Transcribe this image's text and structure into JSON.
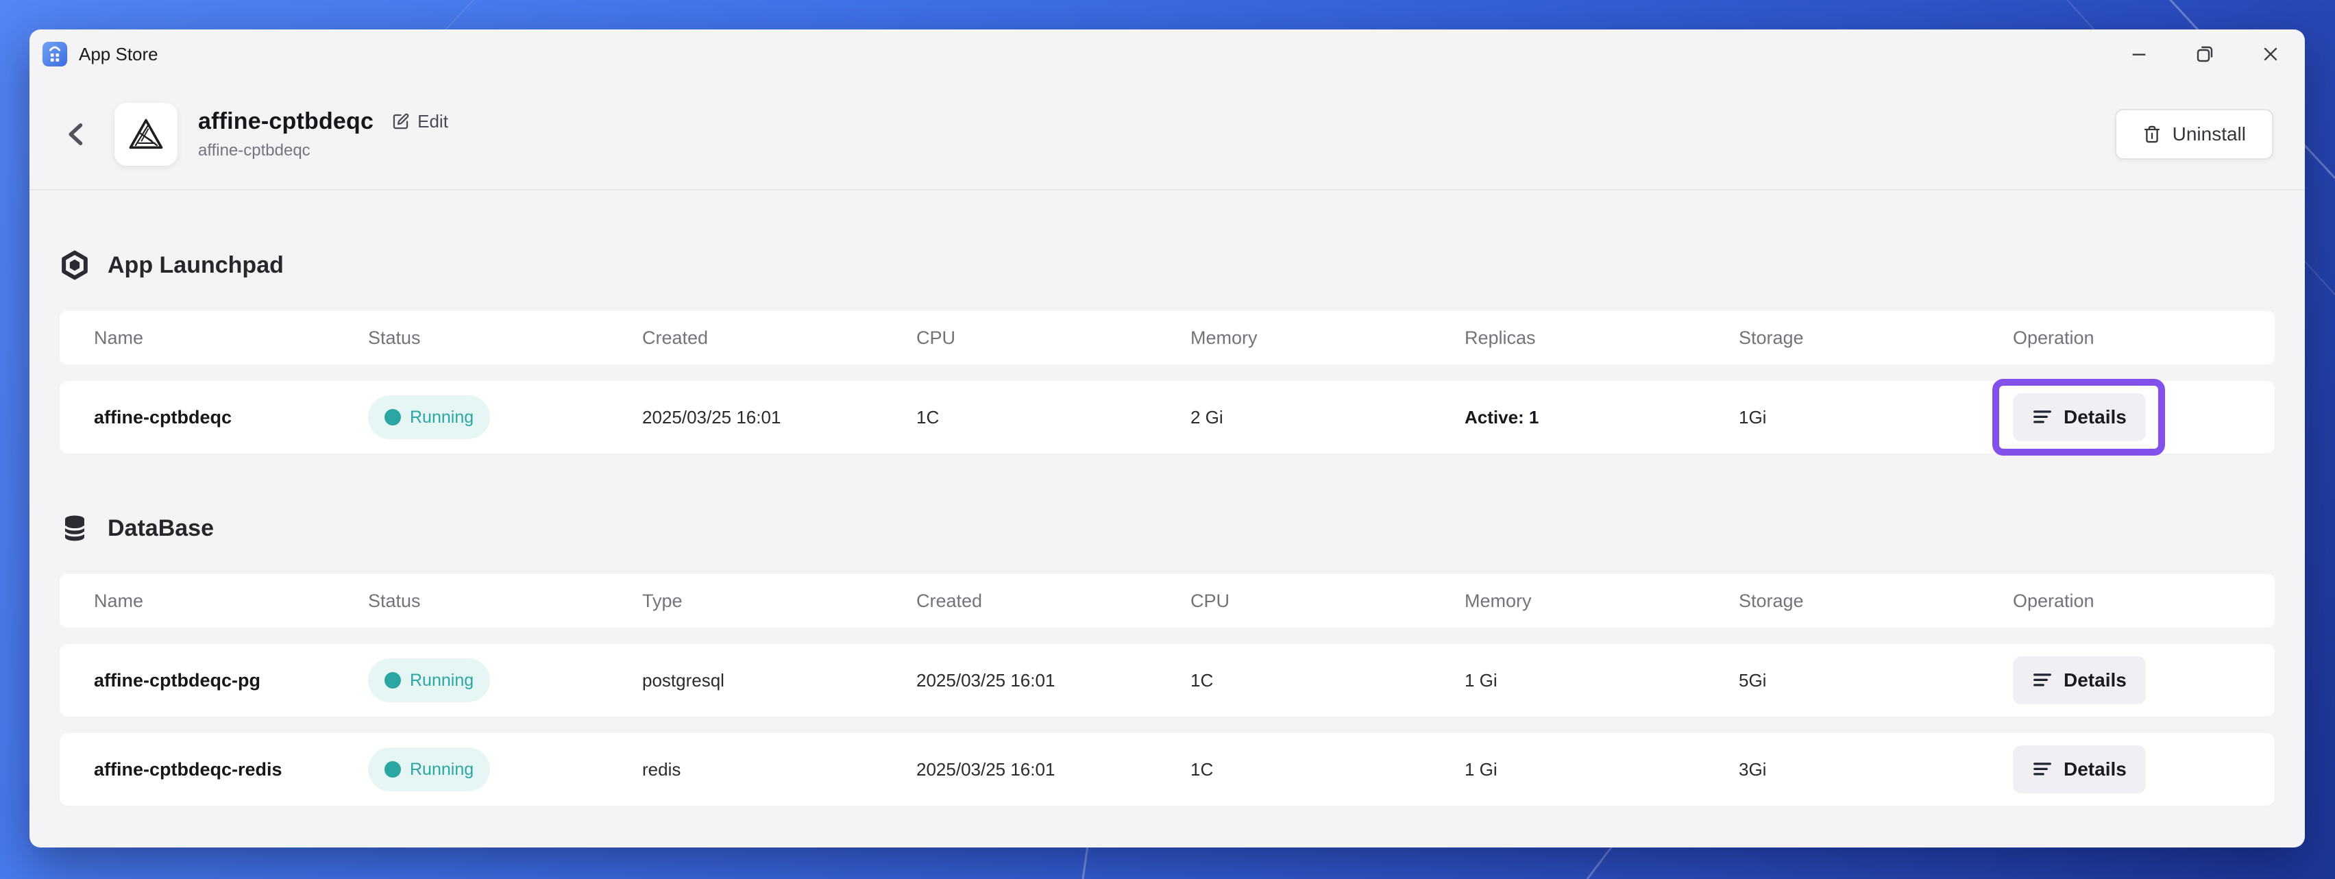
{
  "window": {
    "title": "App Store",
    "icons": {
      "app": "app-store-icon",
      "minimize": "minimize-icon",
      "restore": "restore-icon",
      "close": "close-icon"
    }
  },
  "header": {
    "title": "affine-cptbdeqc",
    "subtitle": "affine-cptbdeqc",
    "back_icon": "chevron-left-icon",
    "logo_icon": "affine-logo-icon",
    "edit": {
      "label": "Edit",
      "icon": "edit-pencil-icon"
    },
    "uninstall": {
      "label": "Uninstall",
      "icon": "trash-icon"
    }
  },
  "sections": [
    {
      "title": "App Launchpad",
      "icon": "launchpad-icon",
      "columns": [
        "Name",
        "Status",
        "Created",
        "CPU",
        "Memory",
        "Replicas",
        "Storage",
        "Operation"
      ],
      "rows": [
        {
          "cells": [
            "affine-cptbdeqc",
            "Running",
            "2025/03/25 16:01",
            "1C",
            "2 Gi",
            "Active: 1",
            "1Gi"
          ],
          "cell_types": [
            "name",
            "status",
            "text",
            "text",
            "text",
            "strong",
            "text"
          ],
          "operation_label": "Details",
          "operation_highlighted": true
        }
      ]
    },
    {
      "title": "DataBase",
      "icon": "database-icon",
      "columns": [
        "Name",
        "Status",
        "Type",
        "Created",
        "CPU",
        "Memory",
        "Storage",
        "Operation"
      ],
      "rows": [
        {
          "cells": [
            "affine-cptbdeqc-pg",
            "Running",
            "postgresql",
            "2025/03/25 16:01",
            "1C",
            "1 Gi",
            "5Gi"
          ],
          "cell_types": [
            "name",
            "status",
            "text",
            "text",
            "text",
            "text",
            "text"
          ],
          "operation_label": "Details",
          "operation_highlighted": false
        },
        {
          "cells": [
            "affine-cptbdeqc-redis",
            "Running",
            "redis",
            "2025/03/25 16:01",
            "1C",
            "1 Gi",
            "3Gi"
          ],
          "cell_types": [
            "name",
            "status",
            "text",
            "text",
            "text",
            "text",
            "text"
          ],
          "operation_label": "Details",
          "operation_highlighted": false
        }
      ]
    }
  ],
  "colors": {
    "accent-purple": "#8350EC",
    "status-teal": "#2AA6A3",
    "status-bg": "#E6F6F5",
    "window-bg": "#F4F4F6",
    "card-bg": "#FFFFFF",
    "desktop-top": "#5486F4",
    "desktop-bottom": "#1D3797"
  }
}
